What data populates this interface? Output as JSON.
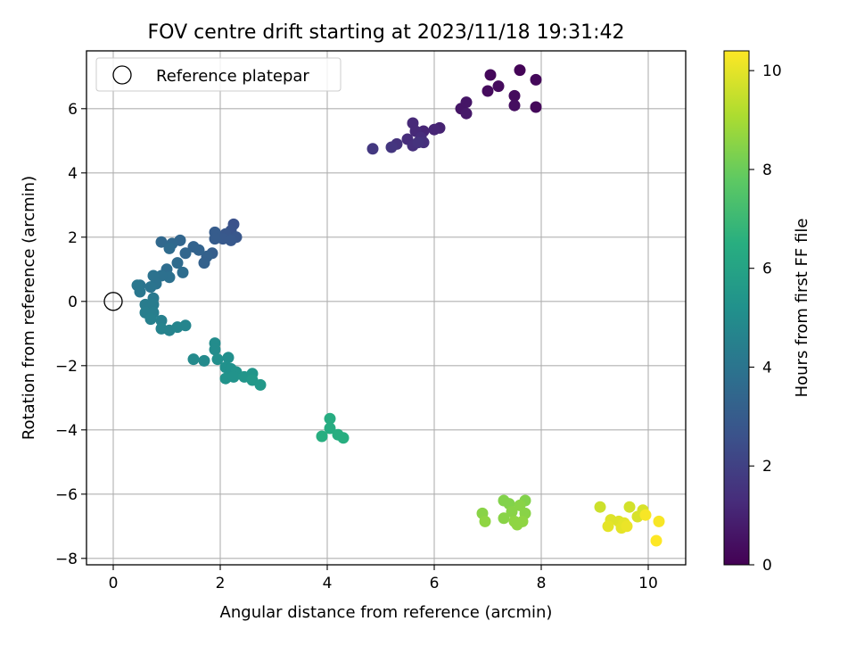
{
  "chart_data": {
    "type": "scatter",
    "title": "FOV centre drift starting at 2023/11/18 19:31:42",
    "xlabel": "Angular distance from reference (arcmin)",
    "ylabel": "Rotation from reference (arcmin)",
    "xlim": [
      -0.5,
      10.7
    ],
    "ylim": [
      -8.2,
      7.8
    ],
    "xticks": [
      0,
      2,
      4,
      6,
      8,
      10
    ],
    "yticks": [
      -8,
      -6,
      -4,
      -2,
      0,
      2,
      4,
      6
    ],
    "grid": true,
    "colorbar": {
      "label": "Hours from first FF file",
      "range": [
        0,
        10.4
      ],
      "ticks": [
        0,
        2,
        4,
        6,
        8,
        10
      ],
      "colormap": "viridis"
    },
    "reference_point": {
      "x": 0,
      "y": 0
    },
    "legend": {
      "position": "top-left",
      "entries": [
        "Reference platepar"
      ]
    },
    "points": [
      {
        "x": 7.6,
        "y": 7.2,
        "h": 0.1
      },
      {
        "x": 7.05,
        "y": 7.05,
        "h": 0.2
      },
      {
        "x": 7.9,
        "y": 6.9,
        "h": 0.2
      },
      {
        "x": 7.2,
        "y": 6.7,
        "h": 0.3
      },
      {
        "x": 7.0,
        "y": 6.55,
        "h": 0.3
      },
      {
        "x": 7.5,
        "y": 6.4,
        "h": 0.3
      },
      {
        "x": 7.5,
        "y": 6.1,
        "h": 0.4
      },
      {
        "x": 7.9,
        "y": 6.05,
        "h": 0.2
      },
      {
        "x": 6.5,
        "y": 6.0,
        "h": 0.6
      },
      {
        "x": 6.6,
        "y": 6.2,
        "h": 0.6
      },
      {
        "x": 6.6,
        "y": 5.85,
        "h": 0.7
      },
      {
        "x": 6.1,
        "y": 5.4,
        "h": 1.0
      },
      {
        "x": 6.0,
        "y": 5.35,
        "h": 1.1
      },
      {
        "x": 5.8,
        "y": 5.3,
        "h": 1.1
      },
      {
        "x": 5.6,
        "y": 5.55,
        "h": 1.2
      },
      {
        "x": 5.65,
        "y": 5.3,
        "h": 1.2
      },
      {
        "x": 5.75,
        "y": 5.1,
        "h": 1.3
      },
      {
        "x": 5.5,
        "y": 5.05,
        "h": 1.3
      },
      {
        "x": 5.8,
        "y": 4.95,
        "h": 1.4
      },
      {
        "x": 5.6,
        "y": 4.85,
        "h": 1.4
      },
      {
        "x": 5.7,
        "y": 4.95,
        "h": 1.5
      },
      {
        "x": 5.3,
        "y": 4.9,
        "h": 1.5
      },
      {
        "x": 5.2,
        "y": 4.8,
        "h": 1.6
      },
      {
        "x": 4.85,
        "y": 4.75,
        "h": 1.7
      },
      {
        "x": 2.25,
        "y": 2.4,
        "h": 2.6
      },
      {
        "x": 2.2,
        "y": 2.2,
        "h": 2.7
      },
      {
        "x": 2.3,
        "y": 2.0,
        "h": 2.8
      },
      {
        "x": 2.1,
        "y": 2.1,
        "h": 2.8
      },
      {
        "x": 2.05,
        "y": 1.95,
        "h": 2.9
      },
      {
        "x": 2.2,
        "y": 1.9,
        "h": 2.9
      },
      {
        "x": 1.9,
        "y": 2.15,
        "h": 3.0
      },
      {
        "x": 1.9,
        "y": 1.95,
        "h": 3.0
      },
      {
        "x": 1.85,
        "y": 1.5,
        "h": 3.1
      },
      {
        "x": 1.75,
        "y": 1.4,
        "h": 3.2
      },
      {
        "x": 1.7,
        "y": 1.2,
        "h": 3.2
      },
      {
        "x": 1.6,
        "y": 1.6,
        "h": 3.3
      },
      {
        "x": 1.5,
        "y": 1.7,
        "h": 3.3
      },
      {
        "x": 1.35,
        "y": 1.5,
        "h": 3.4
      },
      {
        "x": 1.25,
        "y": 1.9,
        "h": 3.4
      },
      {
        "x": 1.1,
        "y": 1.8,
        "h": 3.5
      },
      {
        "x": 0.9,
        "y": 1.85,
        "h": 3.5
      },
      {
        "x": 1.05,
        "y": 1.65,
        "h": 3.6
      },
      {
        "x": 1.2,
        "y": 1.2,
        "h": 3.6
      },
      {
        "x": 1.3,
        "y": 0.9,
        "h": 3.7
      },
      {
        "x": 1.0,
        "y": 1.0,
        "h": 3.7
      },
      {
        "x": 1.05,
        "y": 0.75,
        "h": 3.8
      },
      {
        "x": 0.9,
        "y": 0.8,
        "h": 3.8
      },
      {
        "x": 0.75,
        "y": 0.8,
        "h": 3.9
      },
      {
        "x": 0.8,
        "y": 0.55,
        "h": 3.9
      },
      {
        "x": 0.7,
        "y": 0.45,
        "h": 4.0
      },
      {
        "x": 0.5,
        "y": 0.5,
        "h": 4.0
      },
      {
        "x": 0.45,
        "y": 0.5,
        "h": 4.1
      },
      {
        "x": 0.5,
        "y": 0.3,
        "h": 4.1
      },
      {
        "x": 0.75,
        "y": 0.1,
        "h": 4.2
      },
      {
        "x": 0.6,
        "y": -0.1,
        "h": 4.3
      },
      {
        "x": 0.75,
        "y": -0.1,
        "h": 4.3
      },
      {
        "x": 0.6,
        "y": -0.35,
        "h": 4.4
      },
      {
        "x": 0.75,
        "y": -0.35,
        "h": 4.4
      },
      {
        "x": 0.7,
        "y": -0.55,
        "h": 4.5
      },
      {
        "x": 0.9,
        "y": -0.6,
        "h": 4.5
      },
      {
        "x": 0.9,
        "y": -0.85,
        "h": 4.6
      },
      {
        "x": 1.05,
        "y": -0.9,
        "h": 4.6
      },
      {
        "x": 1.2,
        "y": -0.8,
        "h": 4.7
      },
      {
        "x": 1.35,
        "y": -0.75,
        "h": 4.7
      },
      {
        "x": 1.5,
        "y": -1.8,
        "h": 4.9
      },
      {
        "x": 1.7,
        "y": -1.85,
        "h": 4.9
      },
      {
        "x": 1.9,
        "y": -1.3,
        "h": 5.0
      },
      {
        "x": 1.9,
        "y": -1.5,
        "h": 5.0
      },
      {
        "x": 1.95,
        "y": -1.8,
        "h": 5.1
      },
      {
        "x": 2.15,
        "y": -1.75,
        "h": 5.1
      },
      {
        "x": 2.1,
        "y": -2.05,
        "h": 5.2
      },
      {
        "x": 2.2,
        "y": -2.1,
        "h": 5.2
      },
      {
        "x": 2.3,
        "y": -2.2,
        "h": 5.3
      },
      {
        "x": 2.1,
        "y": -2.4,
        "h": 5.3
      },
      {
        "x": 2.25,
        "y": -2.35,
        "h": 5.3
      },
      {
        "x": 2.45,
        "y": -2.35,
        "h": 5.4
      },
      {
        "x": 2.6,
        "y": -2.25,
        "h": 5.4
      },
      {
        "x": 2.6,
        "y": -2.45,
        "h": 5.5
      },
      {
        "x": 2.75,
        "y": -2.6,
        "h": 5.5
      },
      {
        "x": 4.05,
        "y": -3.65,
        "h": 6.4
      },
      {
        "x": 4.05,
        "y": -3.95,
        "h": 6.4
      },
      {
        "x": 4.2,
        "y": -4.15,
        "h": 6.5
      },
      {
        "x": 3.9,
        "y": -4.2,
        "h": 6.5
      },
      {
        "x": 4.3,
        "y": -4.25,
        "h": 6.5
      },
      {
        "x": 7.3,
        "y": -6.2,
        "h": 8.4
      },
      {
        "x": 7.4,
        "y": -6.3,
        "h": 8.4
      },
      {
        "x": 7.7,
        "y": -6.2,
        "h": 8.4
      },
      {
        "x": 7.6,
        "y": -6.35,
        "h": 8.5
      },
      {
        "x": 7.45,
        "y": -6.55,
        "h": 8.5
      },
      {
        "x": 6.9,
        "y": -6.6,
        "h": 8.5
      },
      {
        "x": 7.7,
        "y": -6.6,
        "h": 8.5
      },
      {
        "x": 7.3,
        "y": -6.75,
        "h": 8.5
      },
      {
        "x": 6.95,
        "y": -6.85,
        "h": 8.6
      },
      {
        "x": 7.5,
        "y": -6.85,
        "h": 8.6
      },
      {
        "x": 7.65,
        "y": -6.85,
        "h": 8.6
      },
      {
        "x": 7.55,
        "y": -6.95,
        "h": 8.6
      },
      {
        "x": 9.1,
        "y": -6.4,
        "h": 9.6
      },
      {
        "x": 9.65,
        "y": -6.4,
        "h": 9.7
      },
      {
        "x": 9.9,
        "y": -6.5,
        "h": 9.8
      },
      {
        "x": 9.8,
        "y": -6.7,
        "h": 9.8
      },
      {
        "x": 9.3,
        "y": -6.8,
        "h": 9.9
      },
      {
        "x": 9.45,
        "y": -6.85,
        "h": 9.9
      },
      {
        "x": 9.55,
        "y": -6.9,
        "h": 10.0
      },
      {
        "x": 9.25,
        "y": -7.0,
        "h": 10.0
      },
      {
        "x": 9.5,
        "y": -7.05,
        "h": 10.0
      },
      {
        "x": 9.6,
        "y": -7.0,
        "h": 10.1
      },
      {
        "x": 9.95,
        "y": -6.65,
        "h": 10.3
      },
      {
        "x": 10.2,
        "y": -6.85,
        "h": 10.3
      },
      {
        "x": 10.15,
        "y": -7.45,
        "h": 10.4
      }
    ]
  }
}
